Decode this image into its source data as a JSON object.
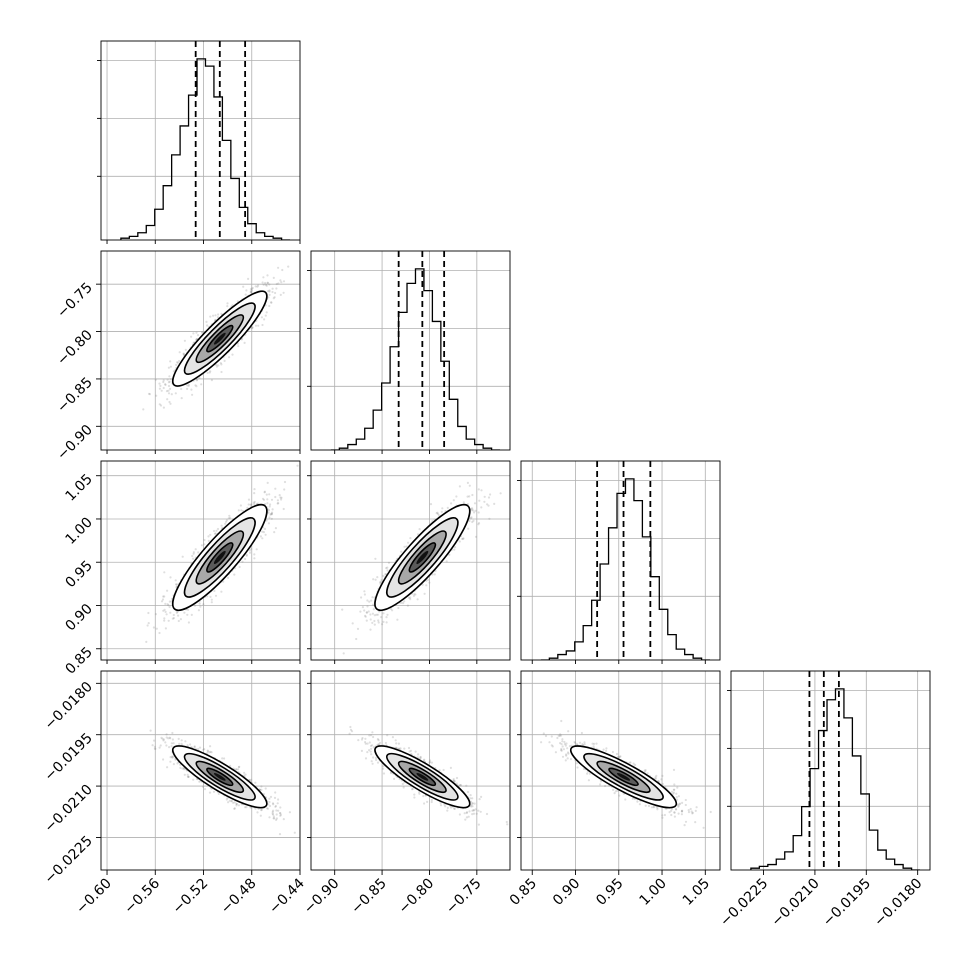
{
  "chart_data": {
    "type": "corner",
    "n_params": 4,
    "grid_lines": true,
    "colors": {
      "points": "#7f7f7f",
      "lines": "#000000",
      "grid": "#b0b0b0"
    },
    "params": [
      {
        "index": 0,
        "range": [
          -0.605,
          -0.44
        ],
        "ticks": [
          -0.6,
          -0.56,
          -0.52,
          -0.48,
          -0.44
        ],
        "tick_labels": [
          "−0.60",
          "−0.56",
          "−0.52",
          "−0.48",
          "−0.44"
        ],
        "mean": -0.5065,
        "std": 0.0195,
        "quantiles": [
          -0.5265,
          -0.5065,
          -0.4855
        ]
      },
      {
        "index": 1,
        "range": [
          -0.925,
          -0.715
        ],
        "ticks": [
          -0.9,
          -0.85,
          -0.8,
          -0.75
        ],
        "tick_labels": [
          "−0.90",
          "−0.85",
          "−0.80",
          "−0.75"
        ],
        "mean": -0.8075,
        "std": 0.025,
        "quantiles": [
          -0.8325,
          -0.8075,
          -0.7845
        ]
      },
      {
        "index": 2,
        "range": [
          0.837,
          1.067
        ],
        "ticks": [
          0.85,
          0.9,
          0.95,
          1.0,
          1.05
        ],
        "tick_labels": [
          "0.85",
          "0.90",
          "0.95",
          "1.00",
          "1.05"
        ],
        "mean": 0.9555,
        "std": 0.0305,
        "quantiles": [
          0.925,
          0.9555,
          0.9865
        ]
      },
      {
        "index": 3,
        "range": [
          -0.02345,
          -0.01764
        ],
        "ticks": [
          -0.0225,
          -0.021,
          -0.0195,
          -0.018
        ],
        "tick_labels": [
          "−0.0225",
          "−0.0210",
          "−0.0195",
          "−0.0180"
        ],
        "mean": -0.02073,
        "std": 0.00045,
        "quantiles": [
          -0.02116,
          -0.02074,
          -0.0203
        ]
      }
    ],
    "correlations": {
      "1-0": 0.9,
      "2-0": 0.88,
      "2-1": 0.88,
      "3-0": -0.87,
      "3-1": -0.87,
      "3-2": -0.87
    },
    "histograms": [
      {
        "param": 0,
        "counts": [
          1,
          2,
          4,
          8,
          17,
          30,
          47,
          63,
          80,
          100,
          96,
          79,
          55,
          34,
          18,
          9,
          4,
          2,
          1,
          0
        ]
      },
      {
        "param": 1,
        "counts": [
          0,
          1,
          3,
          6,
          12,
          22,
          37,
          57,
          76,
          92,
          100,
          88,
          71,
          49,
          28,
          13,
          6,
          3,
          1,
          0
        ]
      },
      {
        "param": 2,
        "counts": [
          0,
          1,
          3,
          5,
          10,
          19,
          33,
          53,
          73,
          92,
          100,
          88,
          68,
          46,
          28,
          14,
          6,
          3,
          1,
          0
        ]
      },
      {
        "param": 3,
        "counts": [
          1,
          2,
          3,
          6,
          10,
          19,
          35,
          56,
          77,
          94,
          100,
          84,
          63,
          42,
          22,
          11,
          6,
          3,
          1,
          0
        ]
      }
    ]
  }
}
